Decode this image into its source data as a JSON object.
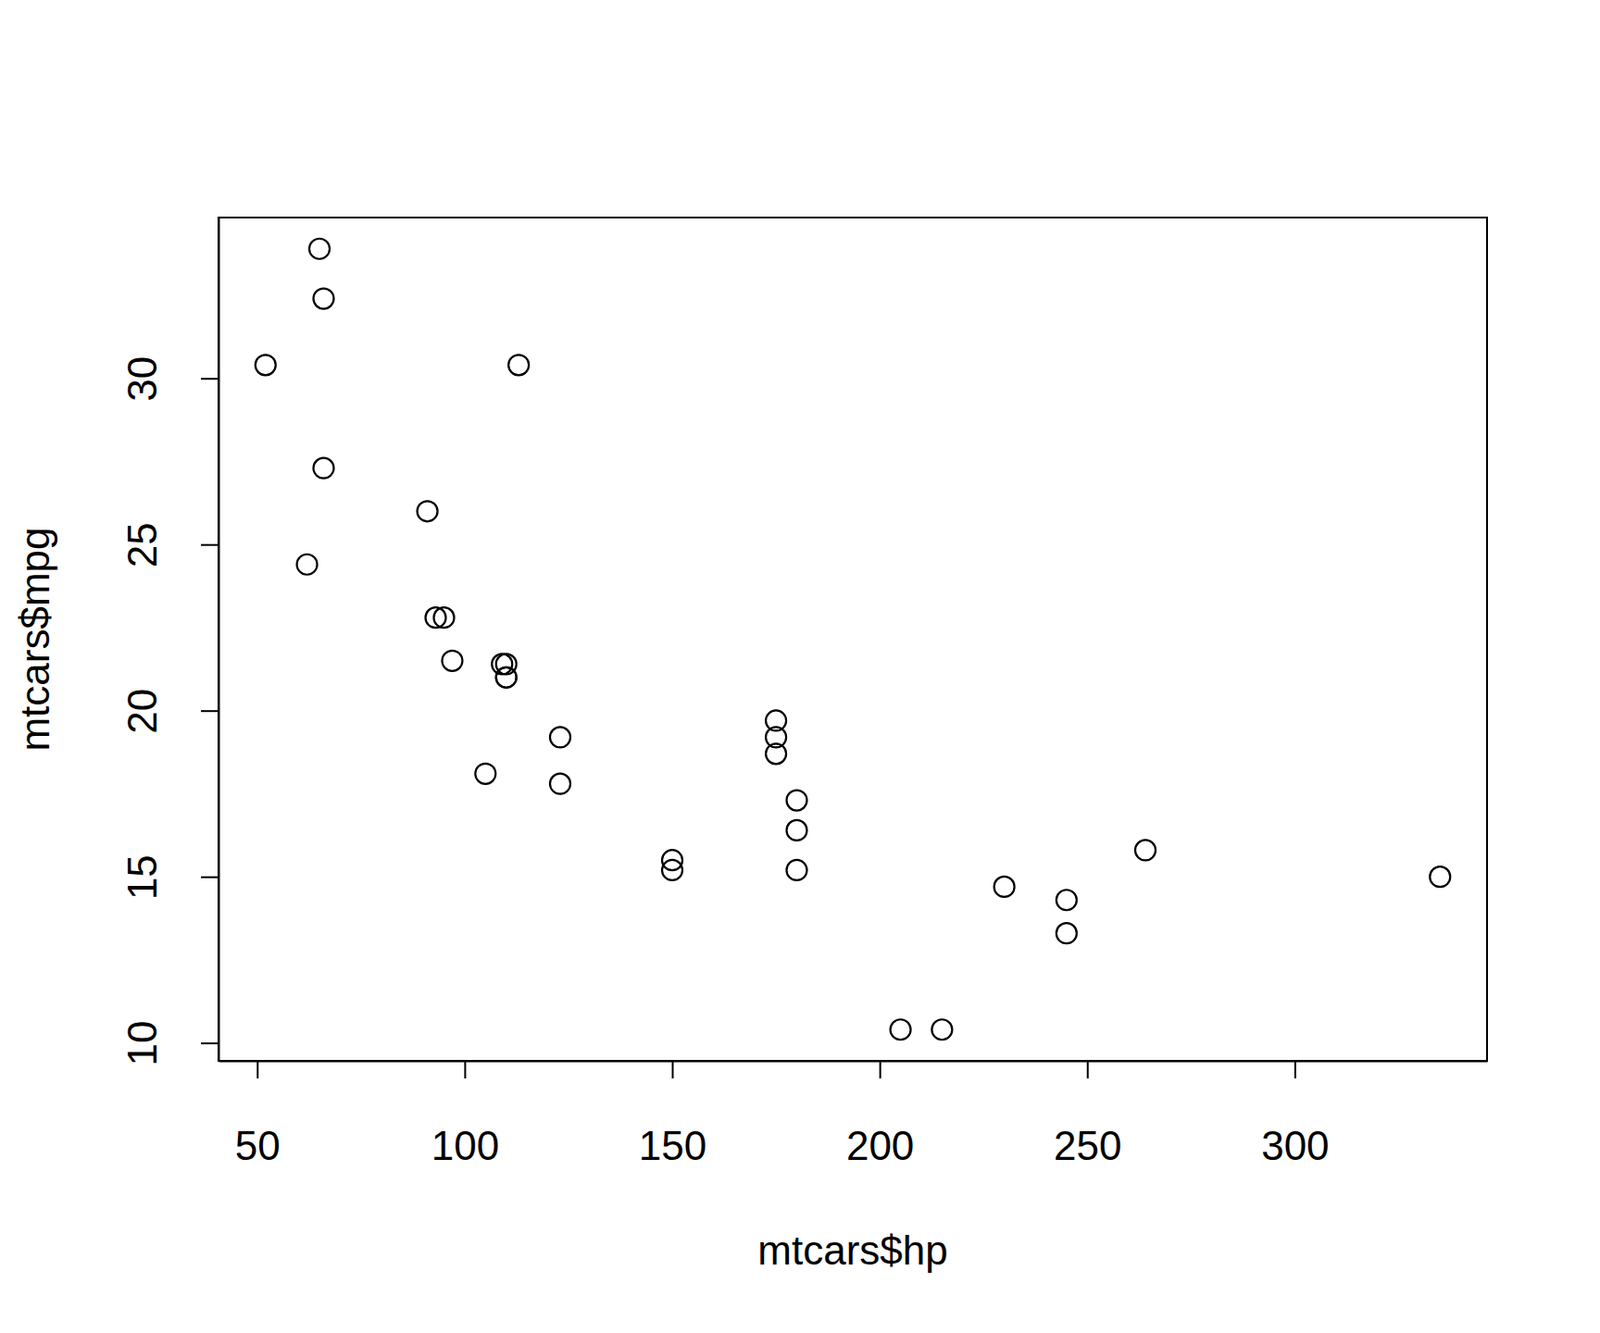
{
  "chart_data": {
    "type": "scatter",
    "x_label": "mtcars$hp",
    "y_label": "mtcars$mpg",
    "x": [
      110,
      110,
      93,
      110,
      175,
      105,
      245,
      62,
      95,
      123,
      123,
      180,
      180,
      180,
      205,
      215,
      230,
      66,
      52,
      65,
      97,
      150,
      150,
      245,
      175,
      66,
      91,
      113,
      264,
      175,
      335,
      109
    ],
    "values": [
      21.0,
      21.0,
      22.8,
      21.4,
      18.7,
      18.1,
      14.3,
      24.4,
      22.8,
      19.2,
      17.8,
      16.4,
      17.3,
      15.2,
      10.4,
      10.4,
      14.7,
      32.4,
      30.4,
      33.9,
      21.5,
      15.5,
      15.2,
      13.3,
      19.2,
      27.3,
      26.0,
      30.4,
      15.8,
      19.7,
      15.0,
      21.4
    ],
    "xlim": [
      40.68,
      346.32
    ],
    "ylim": [
      9.46,
      34.84
    ],
    "xticks": [
      50,
      100,
      150,
      200,
      250,
      300
    ],
    "yticks": [
      10,
      15,
      20,
      25,
      30
    ],
    "marker": "circle",
    "color": "#000000",
    "grid": false
  }
}
